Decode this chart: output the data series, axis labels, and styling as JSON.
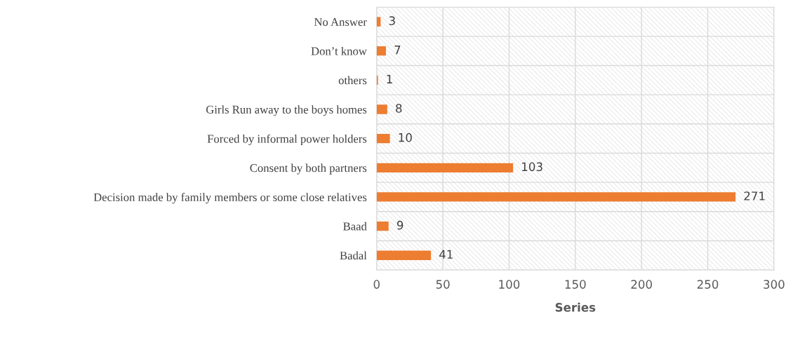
{
  "chart_data": {
    "type": "bar",
    "orientation": "horizontal",
    "xlabel": "Series",
    "categories": [
      "No Answer",
      "Don’t know",
      "others",
      "Girls Run away to the boys homes",
      "Forced by informal power holders",
      "Consent by both partners",
      "Decision made by family members or some close relatives",
      "Baad",
      "Badal"
    ],
    "values": [
      3,
      7,
      1,
      8,
      10,
      103,
      271,
      9,
      41
    ],
    "color": "#ed7d31",
    "xlim": [
      0,
      300
    ],
    "xticks": [
      0,
      50,
      100,
      150,
      200,
      250,
      300
    ],
    "grid": true,
    "data_labels": true
  }
}
